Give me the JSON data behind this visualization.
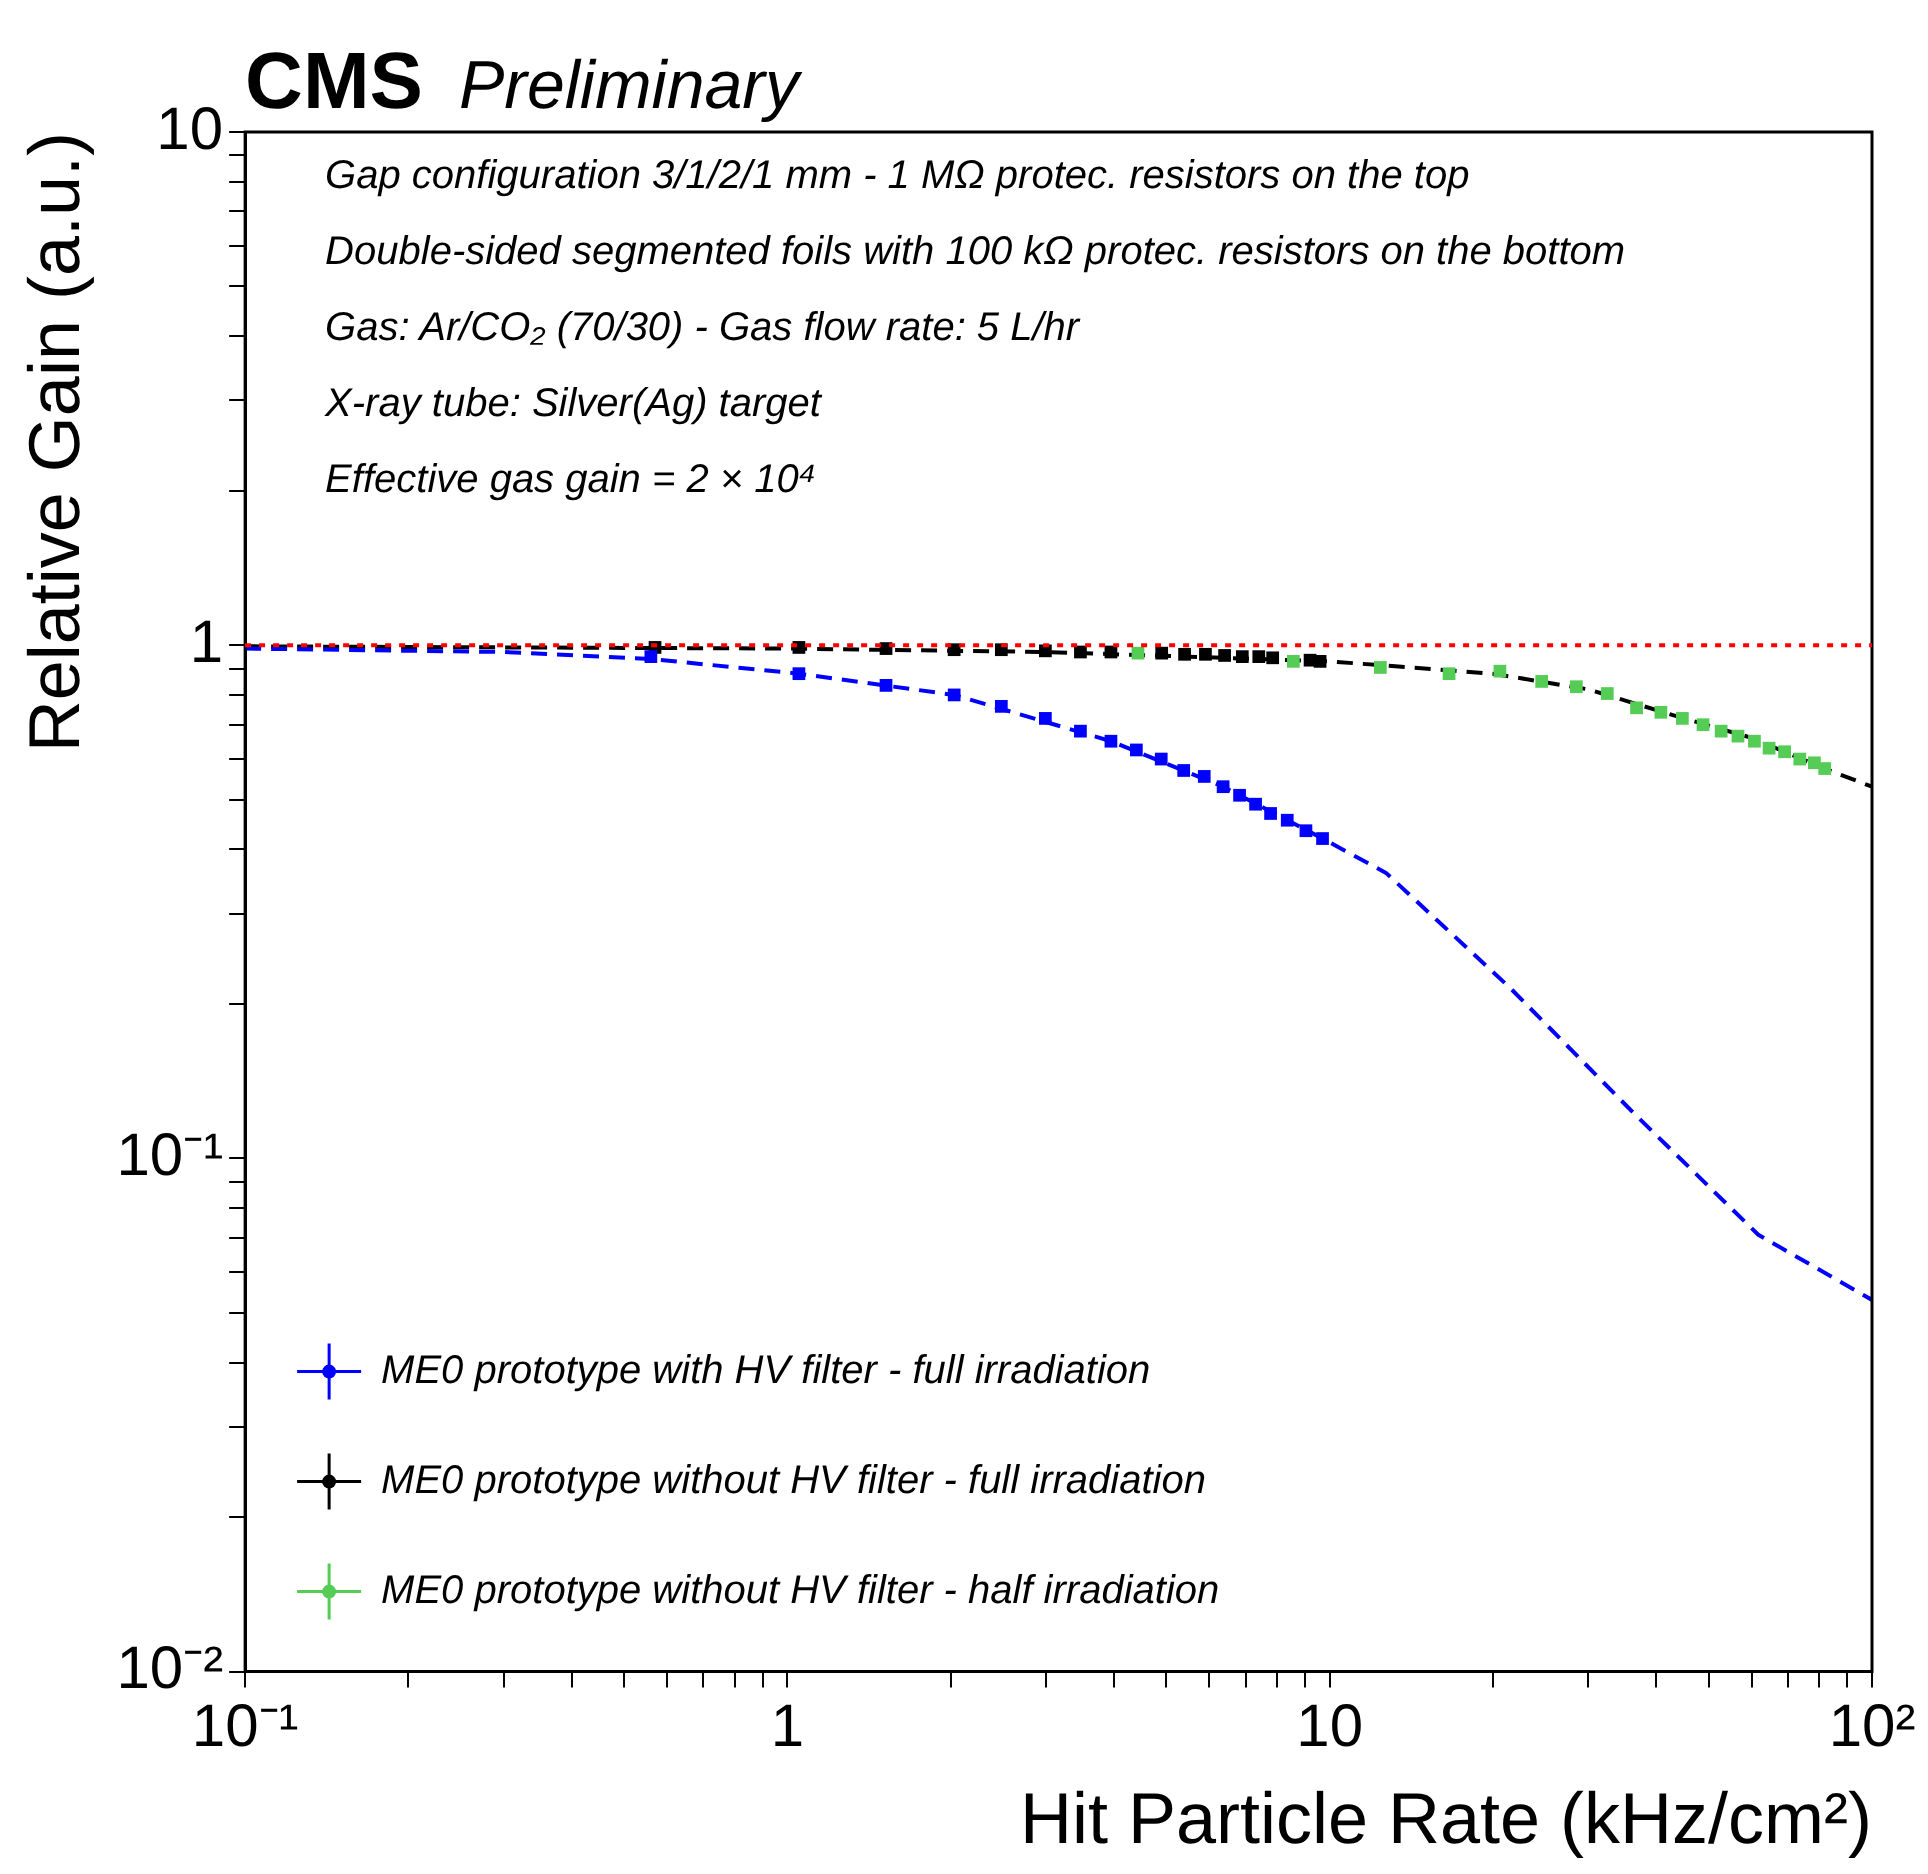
{
  "chart_data": {
    "type": "scatter",
    "title": "CMS",
    "subtitle": "Preliminary",
    "xlabel": "Hit Particle Rate (kHz/cm²)",
    "ylabel": "Relative Gain (a.u.)",
    "log": "xy",
    "xlim": [
      0.1,
      100
    ],
    "ylim": [
      0.01,
      10
    ],
    "xticks": [
      {
        "value": 0.1,
        "label": "10⁻¹"
      },
      {
        "value": 0.2,
        "label": null
      },
      {
        "value": 0.3,
        "label": null
      },
      {
        "value": 0.4,
        "label": null
      },
      {
        "value": 0.5,
        "label": null
      },
      {
        "value": 0.6,
        "label": null
      },
      {
        "value": 0.7,
        "label": null
      },
      {
        "value": 0.8,
        "label": null
      },
      {
        "value": 0.9,
        "label": null
      },
      1,
      {
        "value": 2,
        "label": null
      },
      {
        "value": 3,
        "label": null
      },
      {
        "value": 4,
        "label": null
      },
      {
        "value": 5,
        "label": null
      },
      {
        "value": 6,
        "label": null
      },
      {
        "value": 7,
        "label": null
      },
      {
        "value": 8,
        "label": null
      },
      {
        "value": 9,
        "label": null
      },
      10,
      {
        "value": 20,
        "label": null
      },
      {
        "value": 30,
        "label": null
      },
      {
        "value": 40,
        "label": null
      },
      {
        "value": 50,
        "label": null
      },
      {
        "value": 60,
        "label": null
      },
      {
        "value": 70,
        "label": null
      },
      {
        "value": 80,
        "label": null
      },
      {
        "value": 90,
        "label": null
      },
      {
        "value": 100,
        "label": "10²"
      }
    ],
    "yticks": [
      {
        "value": 0.01,
        "label": "10⁻²"
      },
      {
        "value": 0.02,
        "label": null
      },
      {
        "value": 0.03,
        "label": null
      },
      {
        "value": 0.04,
        "label": null
      },
      {
        "value": 0.05,
        "label": null
      },
      {
        "value": 0.06,
        "label": null
      },
      {
        "value": 0.07,
        "label": null
      },
      {
        "value": 0.08,
        "label": null
      },
      {
        "value": 0.09,
        "label": null
      },
      {
        "value": 0.1,
        "label": "10⁻¹"
      },
      {
        "value": 0.2,
        "label": null
      },
      {
        "value": 0.3,
        "label": null
      },
      {
        "value": 0.4,
        "label": null
      },
      {
        "value": 0.5,
        "label": null
      },
      {
        "value": 0.6,
        "label": null
      },
      {
        "value": 0.7,
        "label": null
      },
      {
        "value": 0.8,
        "label": null
      },
      {
        "value": 0.9,
        "label": null
      },
      1,
      {
        "value": 2,
        "label": null
      },
      {
        "value": 3,
        "label": null
      },
      {
        "value": 4,
        "label": null
      },
      {
        "value": 5,
        "label": null
      },
      {
        "value": 6,
        "label": null
      },
      {
        "value": 7,
        "label": null
      },
      {
        "value": 8,
        "label": null
      },
      {
        "value": 9,
        "label": null
      },
      10
    ],
    "grid": false,
    "legend": "bottom left",
    "marker": "square",
    "series": [
      {
        "name": "ME0 prototype with HV filter - full irradiation",
        "color": "#0000ff",
        "x": [
          0.56,
          1.05,
          1.52,
          2.03,
          2.48,
          2.99,
          3.47,
          3.95,
          4.4,
          4.89,
          5.38,
          5.87,
          6.36,
          6.82,
          7.3,
          7.78,
          8.35,
          9.04,
          9.7
        ],
        "values": [
          0.95,
          0.88,
          0.835,
          0.8,
          0.76,
          0.72,
          0.68,
          0.65,
          0.625,
          0.6,
          0.57,
          0.555,
          0.53,
          0.51,
          0.49,
          0.47,
          0.456,
          0.435,
          0.42
        ]
      },
      {
        "name": "ME0 prototype without HV filter - full irradiation",
        "color": "#000000",
        "x": [
          0.57,
          1.05,
          1.52,
          2.03,
          2.48,
          2.99,
          3.47,
          3.95,
          4.9,
          5.4,
          5.9,
          6.4,
          6.9,
          7.4,
          7.85,
          9.2,
          9.6
        ],
        "values": [
          0.99,
          0.99,
          0.985,
          0.98,
          0.98,
          0.975,
          0.97,
          0.97,
          0.965,
          0.96,
          0.96,
          0.955,
          0.95,
          0.95,
          0.945,
          0.935,
          0.93
        ]
      },
      {
        "name": "ME0 prototype without HV filter - half irradiation",
        "color": "#55cc55",
        "x": [
          4.43,
          8.57,
          12.4,
          16.6,
          20.6,
          24.6,
          28.5,
          32.5,
          36.8,
          40.8,
          44.7,
          48.8,
          52.7,
          56.6,
          60.7,
          64.6,
          69,
          73.6,
          78.3,
          81.8
        ],
        "values": [
          0.965,
          0.93,
          0.905,
          0.88,
          0.89,
          0.85,
          0.83,
          0.805,
          0.755,
          0.74,
          0.72,
          0.7,
          0.68,
          0.665,
          0.65,
          0.63,
          0.62,
          0.6,
          0.59,
          0.575
        ]
      },
      {
        "type": "line",
        "color": "#0000ff",
        "line_style": "dashed",
        "marker": "none",
        "x": [
          0.1,
          0.3,
          0.56,
          1.05,
          2.03,
          3.95,
          6.36,
          9.7,
          12.7,
          21.5,
          36.5,
          61.7,
          100
        ],
        "values": [
          0.985,
          0.97,
          0.94,
          0.88,
          0.8,
          0.65,
          0.53,
          0.42,
          0.36,
          0.215,
          0.122,
          0.071,
          0.053
        ]
      },
      {
        "type": "line",
        "color": "#000000",
        "line_style": "dashed",
        "marker": "none",
        "x": [
          0.1,
          1,
          3,
          10,
          20,
          30,
          45,
          60,
          80,
          100
        ],
        "values": [
          0.995,
          0.985,
          0.97,
          0.93,
          0.88,
          0.82,
          0.72,
          0.66,
          0.58,
          0.53
        ]
      }
    ],
    "ref_lines": [
      {
        "axis": "y",
        "value": 1,
        "color": "#ff0000",
        "line_style": "dotted"
      }
    ],
    "annotations": [
      "Gap configuration 3/1/2/1 mm - 1 MΩ protec. resistors on the top",
      "Double-sided segmented foils with 100 kΩ protec. resistors on the bottom",
      "Gas: Ar/CO₂ (70/30) - Gas flow rate: 5 L/hr",
      "X-ray tube: Silver(Ag) target",
      "Effective gas gain = 2 × 10⁴"
    ]
  }
}
